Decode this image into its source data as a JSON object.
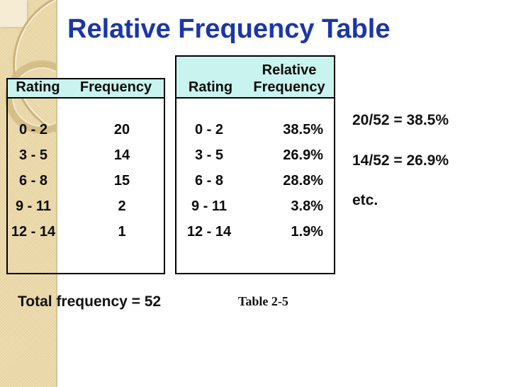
{
  "slide": {
    "title": "Relative Frequency Table"
  },
  "left_table": {
    "headers": [
      "Rating",
      "Frequency"
    ],
    "rows": [
      [
        "0 - 2",
        "20"
      ],
      [
        "3 - 5",
        "14"
      ],
      [
        "6 - 8",
        "15"
      ],
      [
        "9 - 11",
        "2"
      ],
      [
        "12 - 14",
        "1"
      ]
    ]
  },
  "right_table": {
    "headers": {
      "col1": "Rating",
      "col2_line1": "Relative",
      "col2_line2": "Frequency"
    },
    "rows": [
      [
        "0 - 2",
        "38.5%"
      ],
      [
        "3 - 5",
        "26.9%"
      ],
      [
        "6 - 8",
        "28.8%"
      ],
      [
        "9 - 11",
        "3.8%"
      ],
      [
        "12 - 14",
        "1.9%"
      ]
    ]
  },
  "annotations": {
    "line1": "20/52 = 38.5%",
    "line2": "14/52 = 26.9%",
    "line3": "etc."
  },
  "footer": {
    "total": "Total frequency = 52",
    "caption": "Table 2-5"
  },
  "colors": {
    "title_blue": "#1b36a8",
    "header_cyan": "#c8f3ee",
    "sidebar_tan": "#ebd9a9",
    "table_border": "#000000"
  },
  "chart_data": [
    {
      "type": "table",
      "title": "Frequency table",
      "columns": [
        "Rating",
        "Frequency"
      ],
      "rows": [
        [
          "0 - 2",
          20
        ],
        [
          "3 - 5",
          14
        ],
        [
          "6 - 8",
          15
        ],
        [
          "9 - 11",
          2
        ],
        [
          "12 - 14",
          1
        ]
      ],
      "total_frequency": 52
    },
    {
      "type": "table",
      "title": "Relative frequency table (Table 2-5)",
      "columns": [
        "Rating",
        "Relative Frequency"
      ],
      "rows": [
        [
          "0 - 2",
          "38.5%"
        ],
        [
          "3 - 5",
          "26.9%"
        ],
        [
          "6 - 8",
          "28.8%"
        ],
        [
          "9 - 11",
          "3.8%"
        ],
        [
          "12 - 14",
          "1.9%"
        ]
      ]
    }
  ]
}
